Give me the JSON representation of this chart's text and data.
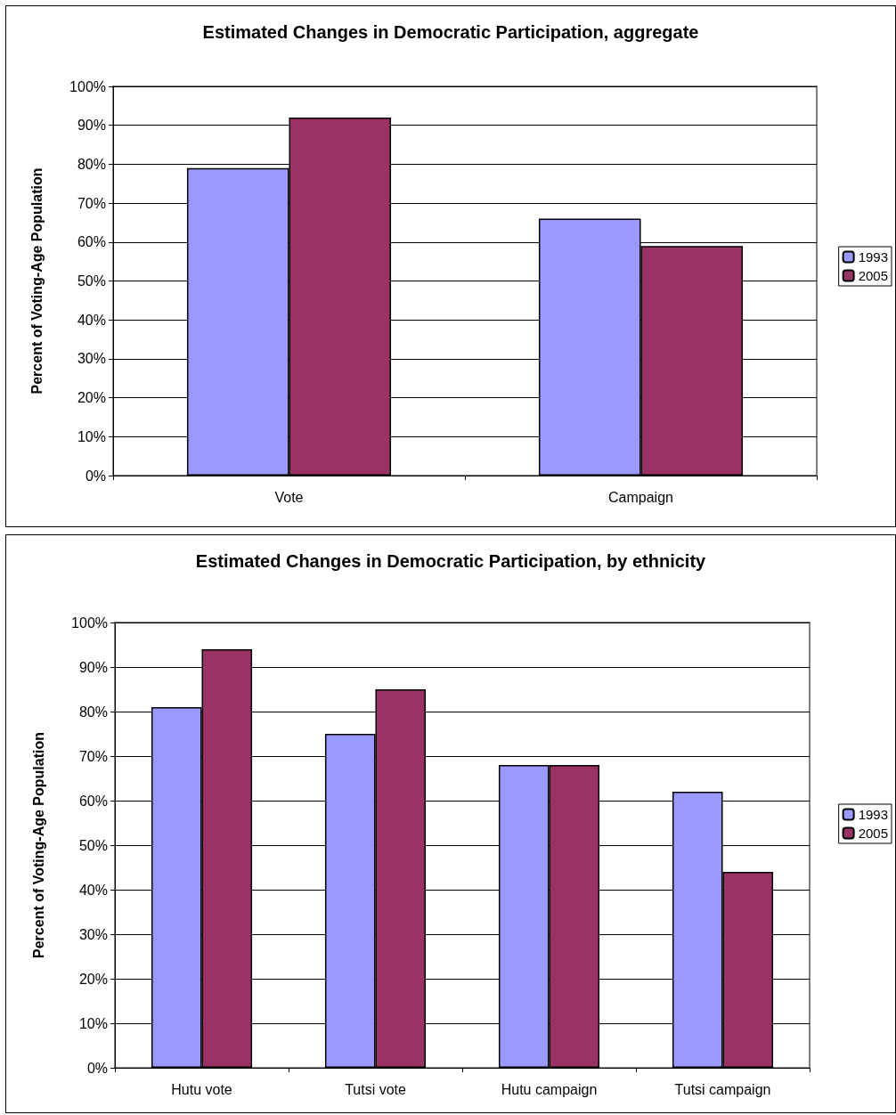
{
  "chart_data": [
    {
      "type": "bar",
      "title": "Estimated Changes in Democratic Participation, aggregate",
      "ylabel": "Percent of Voting-Age Population",
      "categories": [
        "Vote",
        "Campaign"
      ],
      "series": [
        {
          "name": "1993",
          "color": "#9999ff",
          "values": [
            79,
            66
          ]
        },
        {
          "name": "2005",
          "color": "#993366",
          "values": [
            92,
            59
          ]
        }
      ],
      "ylim": [
        0,
        100
      ],
      "yticks": [
        {
          "value": 0,
          "label": "0%"
        },
        {
          "value": 10,
          "label": "10%"
        },
        {
          "value": 20,
          "label": "20%"
        },
        {
          "value": 30,
          "label": "30%"
        },
        {
          "value": 40,
          "label": "40%"
        },
        {
          "value": 50,
          "label": "50%"
        },
        {
          "value": 60,
          "label": "60%"
        },
        {
          "value": 70,
          "label": "70%"
        },
        {
          "value": 80,
          "label": "80%"
        },
        {
          "value": 90,
          "label": "90%"
        },
        {
          "value": 100,
          "label": "100%"
        }
      ],
      "grid": "y",
      "legend": "right"
    },
    {
      "type": "bar",
      "title": "Estimated Changes in Democratic Participation, by ethnicity",
      "ylabel": "Percent of Voting-Age Population",
      "categories": [
        "Hutu vote",
        "Tutsi vote",
        "Hutu campaign",
        "Tutsi campaign"
      ],
      "series": [
        {
          "name": "1993",
          "color": "#9999ff",
          "values": [
            81,
            75,
            68,
            62
          ]
        },
        {
          "name": "2005",
          "color": "#993366",
          "values": [
            94,
            85,
            68,
            44
          ]
        }
      ],
      "ylim": [
        0,
        100
      ],
      "yticks": [
        {
          "value": 0,
          "label": "0%"
        },
        {
          "value": 10,
          "label": "10%"
        },
        {
          "value": 20,
          "label": "20%"
        },
        {
          "value": 30,
          "label": "30%"
        },
        {
          "value": 40,
          "label": "40%"
        },
        {
          "value": 50,
          "label": "50%"
        },
        {
          "value": 60,
          "label": "60%"
        },
        {
          "value": 70,
          "label": "70%"
        },
        {
          "value": 80,
          "label": "80%"
        },
        {
          "value": 90,
          "label": "90%"
        },
        {
          "value": 100,
          "label": "100%"
        }
      ],
      "grid": "y",
      "legend": "right"
    }
  ]
}
